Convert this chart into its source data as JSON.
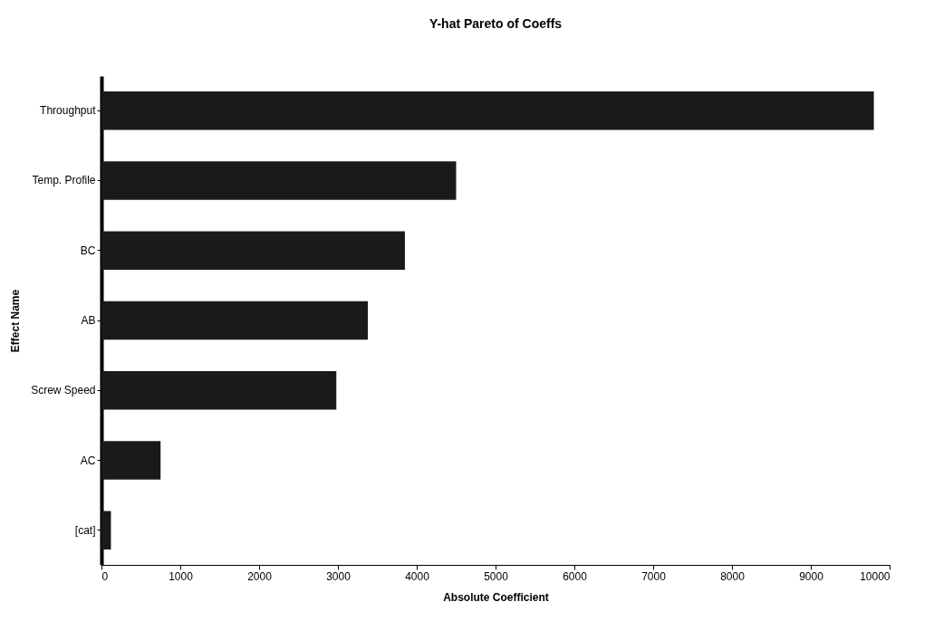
{
  "chart_data": {
    "type": "bar",
    "orientation": "horizontal",
    "title": "Y-hat Pareto of Coeffs",
    "xlabel": "Absolute Coefficient",
    "ylabel": "Effect Name",
    "categories": [
      "Throughput",
      "Temp. Profile",
      "BC",
      "AB",
      "Screw Speed",
      "AC",
      "[cat]"
    ],
    "values": [
      9800,
      4500,
      3850,
      3380,
      2980,
      750,
      120
    ],
    "color": "#1a1a1a",
    "xlim": [
      0,
      10000
    ],
    "xticks": [
      0,
      1000,
      2000,
      3000,
      4000,
      5000,
      6000,
      7000,
      8000,
      9000,
      10000
    ],
    "grid": false
  }
}
